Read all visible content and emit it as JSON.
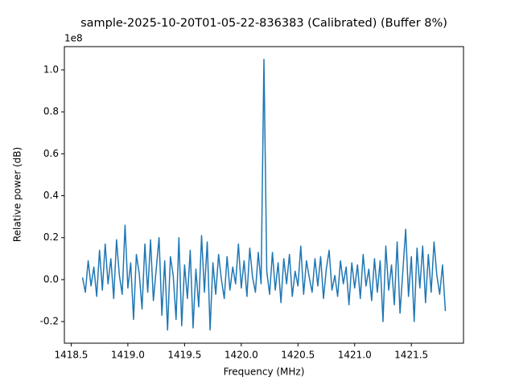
{
  "chart_data": {
    "type": "line",
    "title": "sample-2025-10-20T01-05-22-836383 (Calibrated) (Buffer 8%)",
    "x_label": "Frequency (MHz)",
    "y_label": "Relative power (dB)",
    "y_offset_label": "1e8",
    "xlim": [
      1418.44,
      1421.96
    ],
    "ylim": [
      -0.303,
      1.111
    ],
    "xticks": [
      1418.5,
      {
        "value": 1419,
        "label": "1419.0"
      },
      1419.5,
      {
        "value": 1420,
        "label": "1420.0"
      },
      1420.5,
      {
        "value": 1421,
        "label": "1421.0"
      },
      1421.5
    ],
    "yticks": [
      -0.2,
      {
        "value": 0,
        "label": "0.0"
      },
      0.2,
      0.4,
      0.6,
      0.8,
      {
        "value": 1,
        "label": "1.0"
      }
    ],
    "series": [
      {
        "color": "#1f77b4",
        "x": [
          1418.6,
          1418.625,
          1418.65,
          1418.675,
          1418.7,
          1418.725,
          1418.75,
          1418.775,
          1418.8,
          1418.825,
          1418.85,
          1418.875,
          1418.9,
          1418.925,
          1418.95,
          1418.975,
          1419,
          1419.025,
          1419.05,
          1419.075,
          1419.1,
          1419.125,
          1419.15,
          1419.175,
          1419.2,
          1419.225,
          1419.25,
          1419.275,
          1419.3,
          1419.325,
          1419.35,
          1419.375,
          1419.4,
          1419.425,
          1419.45,
          1419.475,
          1419.5,
          1419.525,
          1419.55,
          1419.575,
          1419.6,
          1419.625,
          1419.65,
          1419.675,
          1419.7,
          1419.725,
          1419.75,
          1419.775,
          1419.8,
          1419.825,
          1419.85,
          1419.875,
          1419.9,
          1419.925,
          1419.95,
          1419.975,
          1420,
          1420.025,
          1420.05,
          1420.075,
          1420.1,
          1420.125,
          1420.15,
          1420.175,
          1420.2,
          1420.225,
          1420.25,
          1420.275,
          1420.3,
          1420.325,
          1420.35,
          1420.375,
          1420.4,
          1420.425,
          1420.45,
          1420.475,
          1420.5,
          1420.525,
          1420.55,
          1420.575,
          1420.6,
          1420.625,
          1420.65,
          1420.675,
          1420.7,
          1420.725,
          1420.75,
          1420.775,
          1420.8,
          1420.825,
          1420.85,
          1420.875,
          1420.9,
          1420.925,
          1420.95,
          1420.975,
          1421,
          1421.025,
          1421.05,
          1421.075,
          1421.1,
          1421.125,
          1421.15,
          1421.175,
          1421.2,
          1421.225,
          1421.25,
          1421.275,
          1421.3,
          1421.325,
          1421.35,
          1421.375,
          1421.4,
          1421.425,
          1421.45,
          1421.475,
          1421.5,
          1421.525,
          1421.55,
          1421.575,
          1421.6,
          1421.625,
          1421.65,
          1421.675,
          1421.7,
          1421.725,
          1421.75,
          1421.775,
          1421.8
        ],
        "values": [
          0.01,
          -0.06,
          0.09,
          -0.03,
          0.06,
          -0.08,
          0.14,
          -0.05,
          0.17,
          -0.02,
          0.1,
          -0.09,
          0.19,
          0.02,
          -0.07,
          0.26,
          -0.04,
          0.08,
          -0.19,
          0.12,
          0.03,
          -0.14,
          0.17,
          -0.06,
          0.19,
          -0.1,
          0.05,
          0.2,
          -0.17,
          0.09,
          -0.24,
          0.11,
          0.02,
          -0.19,
          0.2,
          -0.22,
          0.07,
          -0.09,
          0.14,
          -0.23,
          0.05,
          -0.13,
          0.21,
          -0.06,
          0.18,
          -0.24,
          0.08,
          -0.07,
          0.12,
          0.0,
          -0.09,
          0.11,
          -0.05,
          0.06,
          -0.02,
          0.17,
          -0.04,
          0.09,
          -0.08,
          0.15,
          0.01,
          -0.06,
          0.13,
          -0.02,
          1.05,
          0.04,
          -0.07,
          0.13,
          -0.05,
          0.08,
          -0.11,
          0.1,
          -0.02,
          0.12,
          -0.08,
          0.04,
          -0.03,
          0.16,
          -0.07,
          0.09,
          0.01,
          -0.06,
          0.1,
          -0.03,
          0.11,
          -0.09,
          0.05,
          0.14,
          -0.05,
          0.02,
          -0.08,
          0.09,
          -0.02,
          0.06,
          -0.12,
          0.08,
          -0.04,
          0.07,
          -0.09,
          0.12,
          -0.03,
          0.05,
          -0.1,
          0.1,
          -0.06,
          0.09,
          -0.2,
          0.16,
          -0.05,
          0.07,
          -0.12,
          0.18,
          -0.16,
          0.04,
          0.24,
          -0.08,
          0.11,
          -0.2,
          0.15,
          -0.04,
          0.16,
          -0.11,
          0.12,
          -0.06,
          0.18,
          0.02,
          -0.07,
          0.07,
          -0.15
        ]
      }
    ]
  }
}
